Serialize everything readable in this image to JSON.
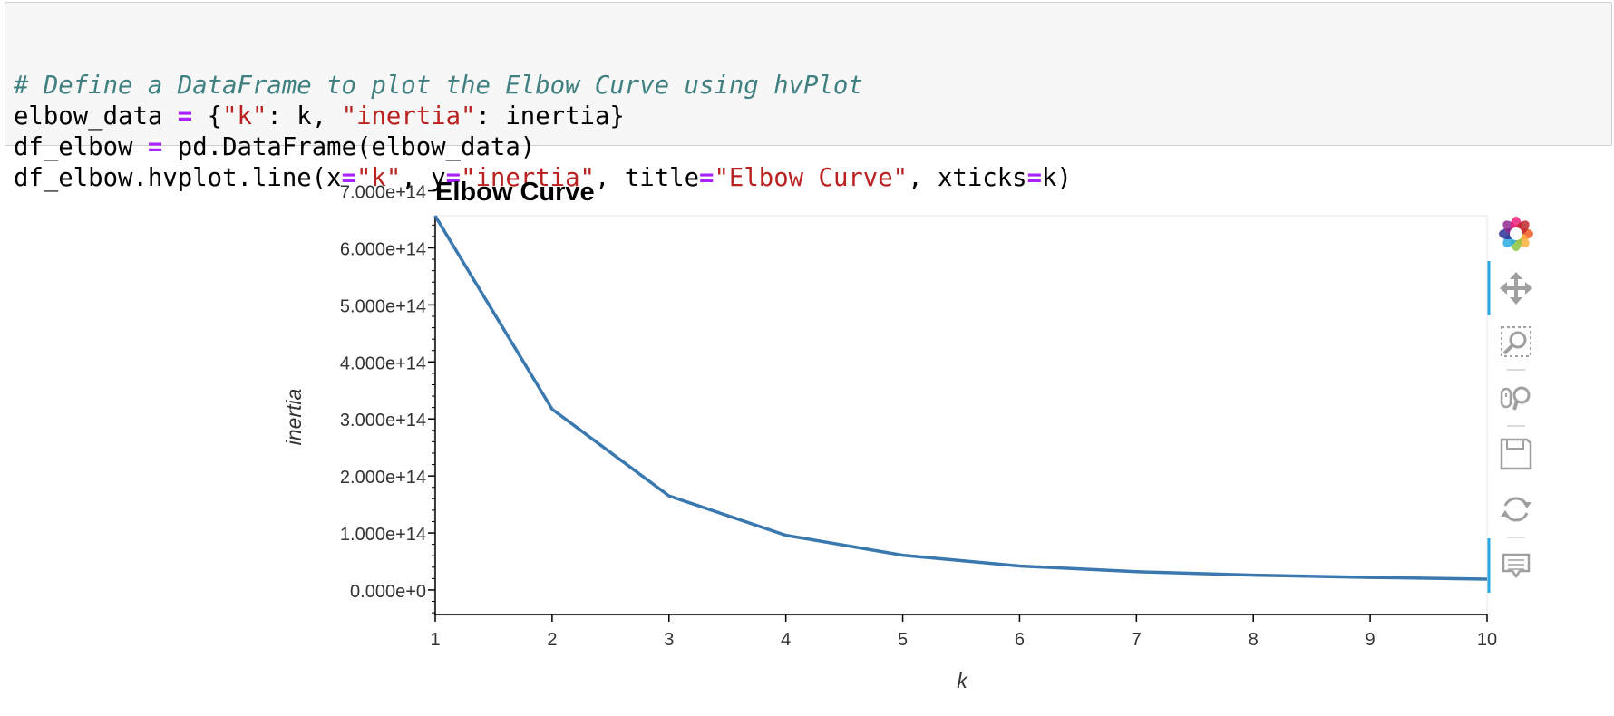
{
  "code_cell": {
    "lines": [
      [
        {
          "t": "# Define a DataFrame to plot the Elbow Curve using hvPlot",
          "c": "comment"
        }
      ],
      [
        {
          "t": "elbow_data ",
          "c": "plain"
        },
        {
          "t": "=",
          "c": "op"
        },
        {
          "t": " {",
          "c": "plain"
        },
        {
          "t": "\"k\"",
          "c": "str"
        },
        {
          "t": ": k, ",
          "c": "plain"
        },
        {
          "t": "\"inertia\"",
          "c": "str"
        },
        {
          "t": ": inertia}",
          "c": "plain"
        }
      ],
      [
        {
          "t": "df_elbow ",
          "c": "plain"
        },
        {
          "t": "=",
          "c": "op"
        },
        {
          "t": " pd.DataFrame(elbow_data)",
          "c": "plain"
        }
      ],
      [
        {
          "t": "df_elbow.hvplot.line(x",
          "c": "plain"
        },
        {
          "t": "=",
          "c": "op"
        },
        {
          "t": "\"k\"",
          "c": "str"
        },
        {
          "t": ", y",
          "c": "plain"
        },
        {
          "t": "=",
          "c": "op"
        },
        {
          "t": "\"inertia\"",
          "c": "str"
        },
        {
          "t": ", title",
          "c": "plain"
        },
        {
          "t": "=",
          "c": "op"
        },
        {
          "t": "\"Elbow Curve\"",
          "c": "str"
        },
        {
          "t": ", xticks",
          "c": "plain"
        },
        {
          "t": "=",
          "c": "op"
        },
        {
          "t": "k)",
          "c": "plain"
        }
      ]
    ]
  },
  "chart_data": {
    "type": "line",
    "title": "Elbow Curve",
    "xlabel": "k",
    "ylabel": "inertia",
    "x": [
      1,
      2,
      3,
      4,
      5,
      6,
      7,
      8,
      9,
      10
    ],
    "series": [
      {
        "values": [
          656000000000000.0,
          317000000000000.0,
          165000000000000.0,
          96000000000000.0,
          61000000000000.0,
          42000000000000.0,
          32000000000000.0,
          26000000000000.0,
          22000000000000.0,
          19000000000000.0
        ],
        "color": "#3a78b0"
      }
    ],
    "xticks": [
      "1",
      "2",
      "3",
      "4",
      "5",
      "6",
      "7",
      "8",
      "9",
      "10"
    ],
    "yticks": [
      {
        "value": 0,
        "label": "0.000e+0"
      },
      {
        "value": 100000000000000.0,
        "label": "1.000e+14"
      },
      {
        "value": 200000000000000.0,
        "label": "2.000e+14"
      },
      {
        "value": 300000000000000.0,
        "label": "3.000e+14"
      },
      {
        "value": 400000000000000.0,
        "label": "4.000e+14"
      },
      {
        "value": 500000000000000.0,
        "label": "5.000e+14"
      },
      {
        "value": 600000000000000.0,
        "label": "6.000e+14"
      },
      {
        "value": 700000000000000.0,
        "label": "7.000e+14"
      }
    ],
    "xlim": [
      1,
      10
    ],
    "ylim": [
      -43000000000000.0,
      720000000000000.0
    ],
    "grid": false,
    "legend": "none"
  },
  "toolbar": {
    "items": [
      {
        "name": "bokeh-logo-icon",
        "interactable": true
      },
      {
        "name": "pan-tool-icon",
        "interactable": true,
        "active": true
      },
      {
        "name": "box-zoom-tool-icon",
        "interactable": true
      },
      {
        "name": "wheel-zoom-tool-icon",
        "interactable": true
      },
      {
        "name": "save-tool-icon",
        "interactable": true
      },
      {
        "name": "reset-tool-icon",
        "interactable": true
      },
      {
        "name": "hover-tool-icon",
        "interactable": true,
        "active": true
      }
    ],
    "active_color": "#26aae1",
    "icon_color": "#a0a0a0"
  }
}
